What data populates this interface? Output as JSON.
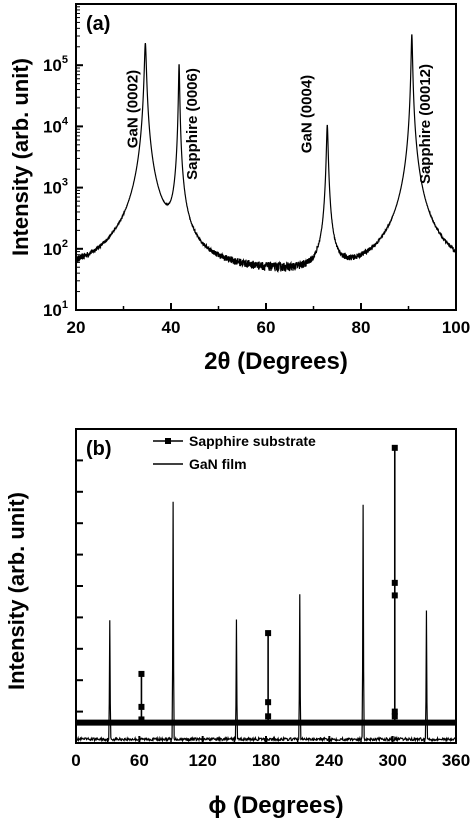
{
  "chart_data": [
    {
      "type": "line",
      "panel_label": "(a)",
      "xlabel": "2θ (Degrees)",
      "ylabel": "Intensity (arb. unit)",
      "xlim": [
        20,
        100
      ],
      "ylim": [
        10,
        1000000
      ],
      "yscale": "log",
      "xticks": [
        20,
        40,
        60,
        80,
        100
      ],
      "yticks": [
        {
          "value": 10,
          "base": "10",
          "exp": "1"
        },
        {
          "value": 100,
          "base": "10",
          "exp": "2"
        },
        {
          "value": 1000,
          "base": "10",
          "exp": "3"
        },
        {
          "value": 10000,
          "base": "10",
          "exp": "4"
        },
        {
          "value": 100000,
          "base": "10",
          "exp": "5"
        }
      ],
      "baseline": 30,
      "peaks": [
        {
          "x": 34.6,
          "y": 230000,
          "width": 0.35,
          "label": "GaN (0002)"
        },
        {
          "x": 41.7,
          "y": 105000,
          "width": 0.2,
          "label": "Sapphire (0006)"
        },
        {
          "x": 72.9,
          "y": 10500,
          "width": 0.3,
          "label": "GaN (0004)"
        },
        {
          "x": 90.7,
          "y": 320000,
          "width": 0.25,
          "label": "Sapphire (00012)"
        }
      ]
    },
    {
      "type": "line",
      "panel_label": "(b)",
      "xlabel": "ϕ (Degrees)",
      "ylabel": "Intensity (arb. unit)",
      "xlim": [
        0,
        360
      ],
      "ylim": [
        0,
        100
      ],
      "xticks": [
        0,
        60,
        120,
        180,
        240,
        300,
        360
      ],
      "legend": "top-center",
      "series": [
        {
          "name": "Sapphire substrate",
          "style": "line-with-square-markers",
          "baseline": 6.5,
          "peaks": [
            {
              "x": 62,
              "values": [
                7.5,
                11.5,
                22
              ]
            },
            {
              "x": 182,
              "values": [
                8.5,
                13,
                35
              ]
            },
            {
              "x": 302,
              "values": [
                8.5,
                10,
                47,
                51,
                94
              ]
            }
          ]
        },
        {
          "name": "GaN film",
          "style": "solid-line",
          "baseline": 1.2,
          "peaks": [
            {
              "x": 32,
              "y": 39
            },
            {
              "x": 92,
              "y": 77
            },
            {
              "x": 152,
              "y": 39
            },
            {
              "x": 212,
              "y": 47
            },
            {
              "x": 272,
              "y": 76
            },
            {
              "x": 332,
              "y": 42
            }
          ]
        }
      ]
    }
  ]
}
